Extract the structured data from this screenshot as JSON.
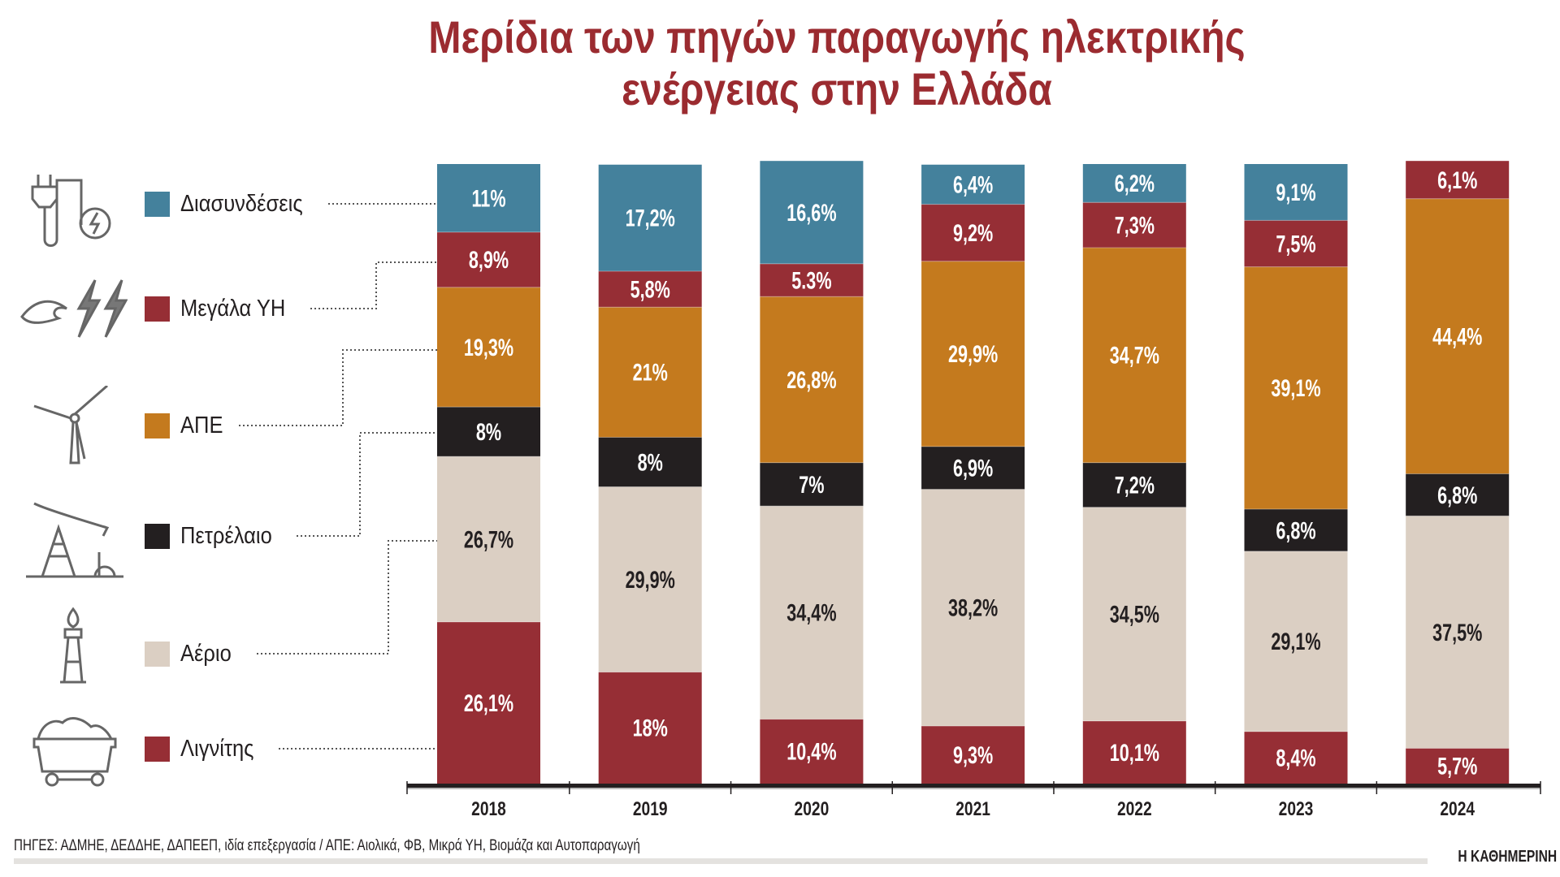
{
  "chart_data": {
    "type": "bar",
    "stacked": true,
    "title": "Μερίδια των πηγών παραγωγής ηλεκτρικής ενέργειας στην Ελλάδα",
    "title_lines": [
      "Μερίδια των πηγών παραγωγής ηλεκτρικής",
      "ενέργειας στην Ελλάδα"
    ],
    "xlabel": "",
    "ylabel": "",
    "ylim": [
      0,
      100
    ],
    "grid": false,
    "legend_placement": "left",
    "categories": [
      "2018",
      "2019",
      "2020",
      "2021",
      "2022",
      "2023",
      "2024"
    ],
    "series": [
      {
        "name": "Λιγνίτης",
        "color": "#962e35",
        "text_color": "#ffffff",
        "values": [
          26.1,
          18,
          10.4,
          9.3,
          10.1,
          8.4,
          5.7
        ],
        "labels": [
          "26,1%",
          "18%",
          "10,4%",
          "9,3%",
          "10,1%",
          "8,4%",
          "5,7%"
        ]
      },
      {
        "name": "Αέριο",
        "color": "#dbcfc3",
        "text_color": "#231f20",
        "values": [
          26.7,
          29.9,
          34.4,
          38.2,
          34.5,
          29.1,
          37.5
        ],
        "labels": [
          "26,7%",
          "29,9%",
          "34,4%",
          "38,2%",
          "34,5%",
          "29,1%",
          "37,5%"
        ]
      },
      {
        "name": "Πετρέλαιο",
        "color": "#231f20",
        "text_color": "#ffffff",
        "values": [
          8,
          8,
          7,
          6.9,
          7.2,
          6.8,
          6.8
        ],
        "labels": [
          "8%",
          "8%",
          "7%",
          "6,9%",
          "7,2%",
          "6,8%",
          "6,8%"
        ]
      },
      {
        "name": "ΑΠΕ",
        "color": "#c47a1e",
        "text_color": "#ffffff",
        "values": [
          19.3,
          21,
          26.8,
          29.9,
          34.7,
          39.1,
          44.4
        ],
        "labels": [
          "19,3%",
          "21%",
          "26,8%",
          "29,9%",
          "34,7%",
          "39,1%",
          "44,4%"
        ]
      },
      {
        "name": "Μεγάλα ΥΗ",
        "color": "#962e35",
        "text_color": "#ffffff",
        "values": [
          8.9,
          5.8,
          5.3,
          9.2,
          7.3,
          7.5,
          6.1
        ],
        "labels": [
          "8,9%",
          "5,8%",
          "5.3%",
          "9,2%",
          "7,3%",
          "7,5%",
          "6,1%"
        ]
      },
      {
        "name": "Διασυνδέσεις",
        "color": "#44819c",
        "text_color": "#ffffff",
        "values": [
          11,
          17.2,
          16.6,
          6.4,
          6.2,
          9.1,
          null
        ],
        "labels": [
          "11%",
          "17,2%",
          "16,6%",
          "6,4%",
          "6,2%",
          "9,1%",
          null
        ]
      }
    ]
  },
  "legend": [
    {
      "label": "Διασυνδέσεις",
      "color": "#44819c",
      "icon": "plug-icon"
    },
    {
      "label": "Μεγάλα ΥΗ",
      "color": "#962e35",
      "icon": "water-lightning-icon"
    },
    {
      "label": "ΑΠΕ",
      "color": "#c47a1e",
      "icon": "wind-turbine-icon"
    },
    {
      "label": "Πετρέλαιο",
      "color": "#231f20",
      "icon": "oil-pump-icon"
    },
    {
      "label": "Αέριο",
      "color": "#dbcfc3",
      "icon": "gas-flame-icon"
    },
    {
      "label": "Λιγνίτης",
      "color": "#962e35",
      "icon": "coal-cart-icon"
    }
  ],
  "source": "ΠΗΓΕΣ: ΑΔΜΗΕ, ΔΕΔΔΗΕ, ΔΑΠΕΕΠ, ιδία επεξεργασία / ΑΠΕ: Αιολικά, ΦΒ, Μικρά ΥΗ, Βιομάζα και Αυτοπαραγωγή",
  "brand": "Η ΚΑΘΗΜΕΡΙΝΗ"
}
